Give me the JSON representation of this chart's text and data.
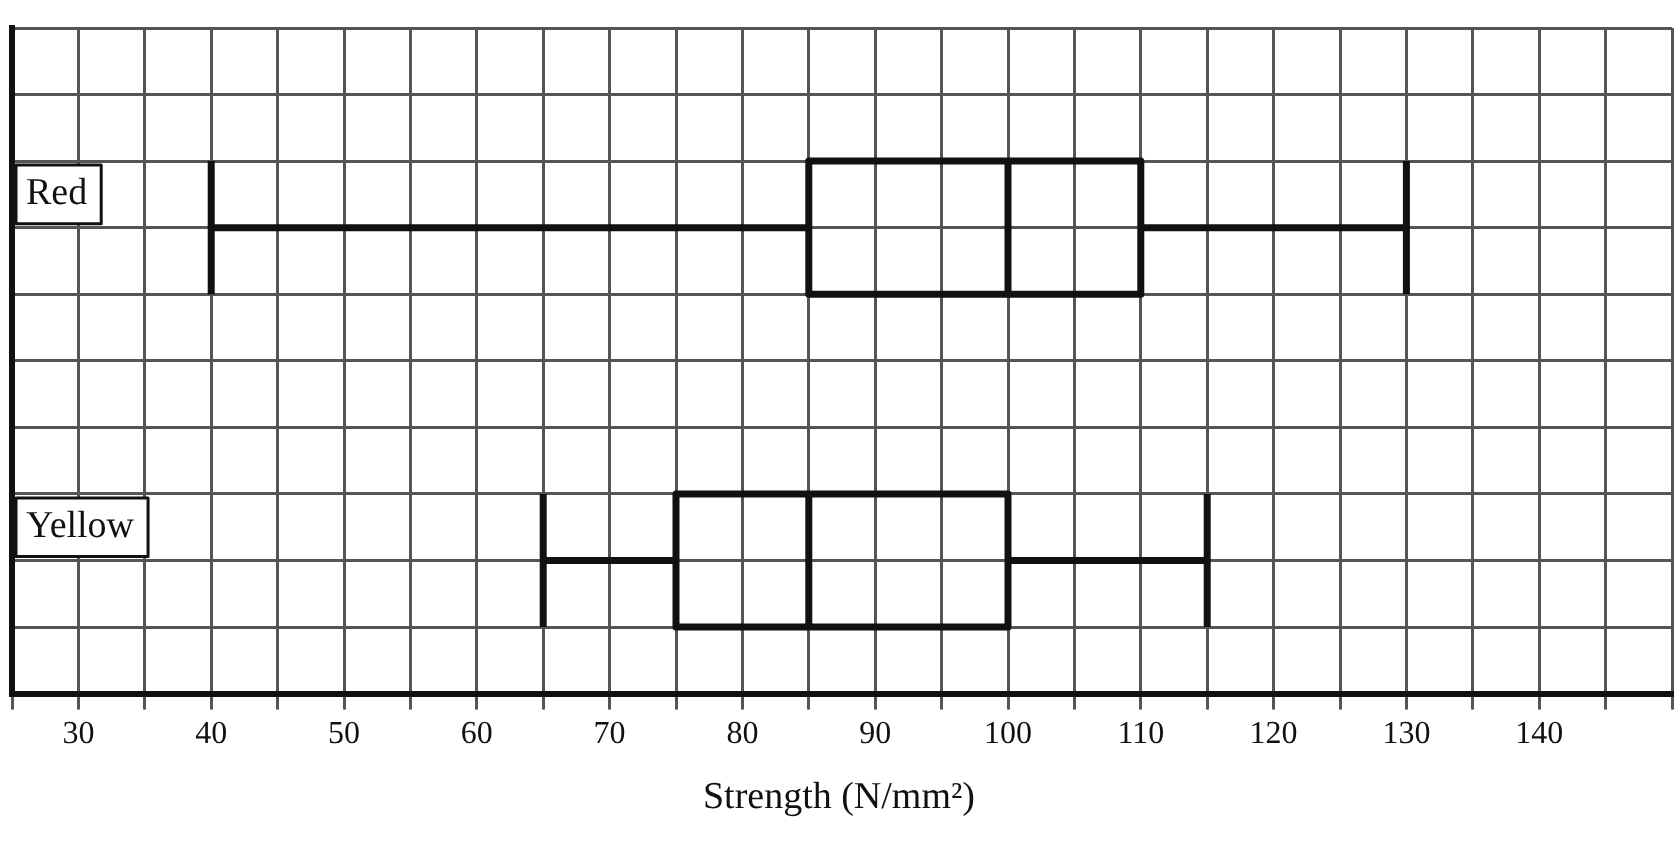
{
  "chart_data": {
    "type": "box",
    "orientation": "horizontal",
    "xlabel": "Strength (N/mm²)",
    "categories": [
      "Red",
      "Yellow"
    ],
    "boxes": [
      {
        "low": 40,
        "q1": 85,
        "median": 100,
        "q3": 110,
        "high": 130
      },
      {
        "low": 65,
        "q1": 75,
        "median": 85,
        "q3": 100,
        "high": 115
      }
    ],
    "color": "#111111",
    "xlim": [
      25,
      150
    ],
    "xticks": [
      {
        "value": 25,
        "label": null
      },
      30,
      {
        "value": 35,
        "label": null
      },
      40,
      {
        "value": 45,
        "label": null
      },
      50,
      {
        "value": 55,
        "label": null
      },
      60,
      {
        "value": 65,
        "label": null
      },
      70,
      {
        "value": 75,
        "label": null
      },
      80,
      {
        "value": 85,
        "label": null
      },
      90,
      {
        "value": 95,
        "label": null
      },
      100,
      {
        "value": 105,
        "label": null
      },
      110,
      {
        "value": 115,
        "label": null
      },
      120,
      {
        "value": 125,
        "label": null
      },
      130,
      {
        "value": 135,
        "label": null
      },
      140,
      {
        "value": 145,
        "label": null
      },
      {
        "value": 150,
        "label": null
      }
    ],
    "grid": true,
    "legend": false
  }
}
